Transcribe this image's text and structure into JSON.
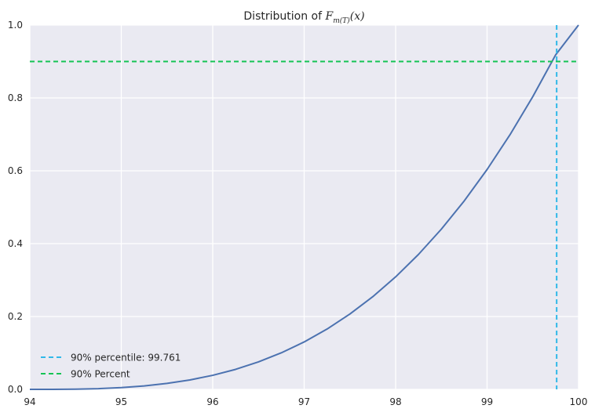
{
  "chart_data": {
    "type": "line",
    "title": {
      "prefix": "Distribution of ",
      "math_main": "F",
      "math_sub": "m(T)",
      "math_arg": "(x)"
    },
    "xlim": [
      94,
      100
    ],
    "ylim": [
      0.0,
      1.0
    ],
    "xticks": [
      94,
      95,
      96,
      97,
      98,
      99,
      100
    ],
    "xtick_labels": [
      "94",
      "95",
      "96",
      "97",
      "98",
      "99",
      "100"
    ],
    "yticks": [
      0.0,
      0.2,
      0.4,
      0.6,
      0.8,
      1.0
    ],
    "ytick_labels": [
      "0.0",
      "0.2",
      "0.4",
      "0.6",
      "0.8",
      "1.0"
    ],
    "grid": true,
    "background_color": "#EAEAF2",
    "series": [
      {
        "name": "F_m(T)(x)",
        "color": "#4C72B0",
        "x": [
          94.0,
          94.25,
          94.5,
          94.75,
          95.0,
          95.25,
          95.5,
          95.75,
          96.0,
          96.25,
          96.5,
          96.75,
          97.0,
          97.25,
          97.5,
          97.75,
          98.0,
          98.25,
          98.5,
          98.75,
          99.0,
          99.25,
          99.5,
          99.75,
          100.0
        ],
        "y": [
          0.0,
          0.0001,
          0.0006,
          0.002,
          0.0048,
          0.0094,
          0.0163,
          0.0259,
          0.0386,
          0.0549,
          0.0754,
          0.1003,
          0.1302,
          0.1655,
          0.2068,
          0.2544,
          0.3088,
          0.3704,
          0.4398,
          0.5173,
          0.6035,
          0.6987,
          0.8035,
          0.9183,
          1.0
        ]
      }
    ],
    "reference_lines": [
      {
        "orientation": "vertical",
        "value": 99.761,
        "label": "90% percentile: 99.761",
        "color": "#30B8E8",
        "style": "dashed"
      },
      {
        "orientation": "horizontal",
        "value": 0.9,
        "label": "90% Percent",
        "color": "#14C454",
        "style": "dashed"
      }
    ],
    "legend_position": "lower-left"
  }
}
